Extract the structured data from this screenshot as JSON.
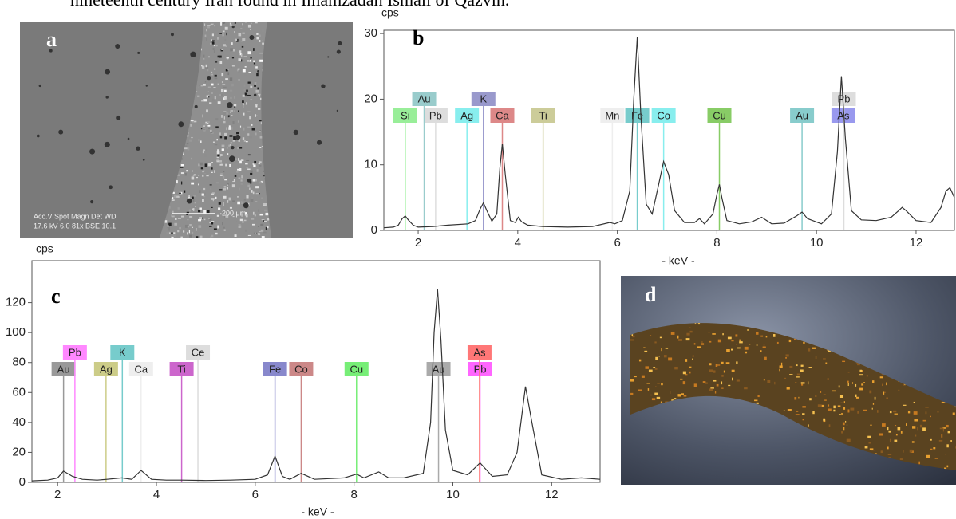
{
  "caption_fragment": "nineteenth century Iran found in Imamzadah Ismail of Qazvin.",
  "figure_a": {
    "label": "a",
    "overlay": [
      "Acc.V  Spot Magn    Det  WD",
      "17.6 kV 6.0   81x   BSE 10.1"
    ],
    "scale_bar": "200 μm"
  },
  "figure_d": {
    "label": "d"
  },
  "chart_data": [
    {
      "type": "spectrum",
      "label": "b",
      "y_label": "cps",
      "x_label": "- keV -",
      "color": "#333333",
      "xlim": [
        1.31,
        12.77
      ],
      "ylim": [
        0,
        30.5
      ],
      "xticks": [
        2,
        4,
        6,
        8,
        10,
        12
      ],
      "yticks": [
        0,
        10,
        20,
        30
      ],
      "x": [
        1.31,
        1.5,
        1.6,
        1.68,
        1.74,
        1.8,
        1.9,
        2.0,
        2.3,
        2.6,
        3.0,
        3.15,
        3.24,
        3.31,
        3.38,
        3.48,
        3.58,
        3.64,
        3.69,
        3.75,
        3.85,
        3.95,
        4.01,
        4.08,
        4.2,
        4.5,
        5.0,
        5.5,
        5.85,
        5.95,
        6.1,
        6.25,
        6.33,
        6.4,
        6.47,
        6.58,
        6.7,
        6.83,
        6.93,
        7.03,
        7.15,
        7.35,
        7.55,
        7.65,
        7.75,
        7.92,
        8.0,
        8.05,
        8.1,
        8.2,
        8.45,
        8.7,
        8.9,
        9.1,
        9.35,
        9.6,
        9.71,
        9.82,
        10.1,
        10.3,
        10.42,
        10.5,
        10.58,
        10.7,
        10.9,
        11.2,
        11.5,
        11.65,
        11.72,
        11.8,
        12.0,
        12.3,
        12.5,
        12.6,
        12.68,
        12.77
      ],
      "values": [
        0.4,
        0.5,
        0.8,
        1.8,
        2.2,
        1.6,
        0.8,
        0.5,
        0.6,
        0.8,
        1.0,
        1.5,
        3.2,
        4.2,
        3.0,
        1.4,
        2.5,
        9.5,
        13.2,
        8.5,
        1.5,
        1.2,
        2.0,
        1.3,
        0.8,
        0.6,
        0.5,
        0.6,
        1.2,
        1.0,
        1.5,
        6.0,
        20.0,
        29.5,
        18.0,
        4.0,
        2.5,
        7.0,
        10.5,
        8.5,
        3.0,
        1.2,
        1.2,
        1.8,
        1.0,
        2.5,
        5.5,
        7.0,
        5.0,
        1.5,
        1.0,
        1.3,
        2.0,
        1.0,
        1.1,
        2.2,
        2.8,
        1.8,
        1.0,
        2.5,
        12.0,
        23.5,
        14.0,
        3.0,
        1.6,
        1.5,
        2.0,
        3.0,
        3.5,
        3.0,
        1.5,
        1.2,
        3.5,
        6.0,
        6.5,
        5.0
      ],
      "markers": [
        {
          "label": "Si",
          "x": 1.74,
          "color": "#99ee99"
        },
        {
          "label": "Pb",
          "x": 2.35,
          "color": "#dddddd"
        },
        {
          "label": "Au",
          "x": 2.12,
          "color": "#99cccc"
        },
        {
          "label": "Ag",
          "x": 2.98,
          "color": "#88eeee"
        },
        {
          "label": "Ca",
          "x": 3.69,
          "color": "#dd8888"
        },
        {
          "label": "K",
          "x": 3.31,
          "color": "#9999cc"
        },
        {
          "label": "Ti",
          "x": 4.51,
          "color": "#cccc99"
        },
        {
          "label": "Mn",
          "x": 5.9,
          "color": "#eeeeee"
        },
        {
          "label": "Fe",
          "x": 6.4,
          "color": "#77cccc"
        },
        {
          "label": "Co",
          "x": 6.93,
          "color": "#88eeee"
        },
        {
          "label": "Cu",
          "x": 8.05,
          "color": "#88cc66"
        },
        {
          "label": "Au",
          "x": 9.71,
          "color": "#88cccc"
        },
        {
          "label": "As",
          "x": 10.54,
          "color": "#9999ee"
        },
        {
          "label": "Pb",
          "x": 10.55,
          "color": "#dddddd"
        }
      ]
    },
    {
      "type": "spectrum",
      "label": "c",
      "y_label": "cps",
      "x_label": "- keV -",
      "color": "#333333",
      "xlim": [
        1.48,
        12.98
      ],
      "ylim": [
        0,
        148
      ],
      "xticks": [
        2,
        4,
        6,
        8,
        10,
        12
      ],
      "yticks": [
        0,
        20,
        40,
        60,
        80,
        100,
        120
      ],
      "x": [
        1.48,
        1.8,
        2.0,
        2.12,
        2.3,
        2.5,
        2.8,
        3.0,
        3.3,
        3.5,
        3.69,
        3.9,
        4.2,
        4.5,
        5.0,
        5.5,
        6.0,
        6.25,
        6.4,
        6.55,
        6.7,
        6.93,
        7.2,
        7.5,
        7.8,
        8.05,
        8.2,
        8.5,
        8.7,
        9.0,
        9.4,
        9.55,
        9.62,
        9.69,
        9.76,
        9.85,
        10.0,
        10.3,
        10.55,
        10.8,
        11.1,
        11.3,
        11.47,
        11.6,
        11.8,
        12.2,
        12.6,
        12.98
      ],
      "values": [
        1,
        1.5,
        3,
        7.5,
        4,
        2,
        1.5,
        2,
        3,
        2,
        8,
        2,
        1.5,
        1.5,
        1.2,
        1.5,
        2,
        5,
        17.5,
        4,
        2,
        6,
        2,
        2.5,
        3,
        5.5,
        3,
        7,
        3,
        3,
        6,
        40,
        100,
        129,
        95,
        35,
        8,
        5,
        13,
        4,
        5,
        20,
        64,
        40,
        5,
        2,
        3,
        2
      ],
      "markers": [
        {
          "label": "Au",
          "x": 2.12,
          "color": "#999999"
        },
        {
          "label": "Pb",
          "x": 2.35,
          "color": "#ff88ff"
        },
        {
          "label": "Ag",
          "x": 2.98,
          "color": "#cccc88"
        },
        {
          "label": "K",
          "x": 3.31,
          "color": "#77cccc"
        },
        {
          "label": "Ca",
          "x": 3.69,
          "color": "#eeeeee"
        },
        {
          "label": "Ti",
          "x": 4.51,
          "color": "#cc66cc"
        },
        {
          "label": "Ce",
          "x": 4.84,
          "color": "#dddddd"
        },
        {
          "label": "Fe",
          "x": 6.4,
          "color": "#8888cc"
        },
        {
          "label": "Co",
          "x": 6.93,
          "color": "#cc8888"
        },
        {
          "label": "Cu",
          "x": 8.05,
          "color": "#77ee77"
        },
        {
          "label": "Au",
          "x": 9.71,
          "color": "#aaaaaa"
        },
        {
          "label": "Pb",
          "x": 10.55,
          "color": "#ff66ff"
        },
        {
          "label": "As",
          "x": 10.54,
          "color": "#ff7777"
        }
      ]
    }
  ]
}
